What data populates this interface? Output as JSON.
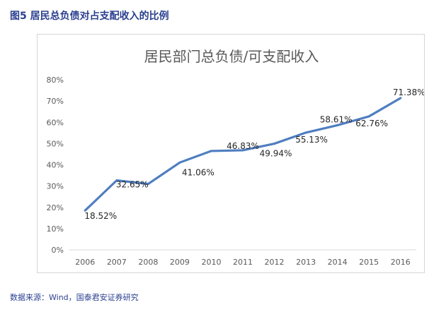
{
  "figure": {
    "title": "图5  居民总负债对占支配收入的比例",
    "source": "数据来源：Wind，国泰君安证券研究"
  },
  "chart_data": {
    "type": "line",
    "title": "居民部门总负债/可支配收入",
    "xlabel": "",
    "ylabel": "",
    "categories": [
      "2006",
      "2007",
      "2008",
      "2009",
      "2010",
      "2011",
      "2012",
      "2013",
      "2014",
      "2015",
      "2016"
    ],
    "series": [
      {
        "values": [
          18.52,
          32.65,
          31.0,
          41.06,
          46.5,
          46.83,
          49.94,
          55.13,
          58.61,
          62.76,
          71.38
        ],
        "data_labels": [
          "18.52%",
          "32.65%",
          "",
          "41.06%",
          "",
          "46.83%",
          "49.94%",
          "55.13%",
          "58.61%",
          "62.76%",
          "71.38%"
        ]
      }
    ],
    "ylim": [
      0,
      80
    ],
    "yticks": [
      "0%",
      "10%",
      "20%",
      "30%",
      "40%",
      "50%",
      "60%",
      "70%",
      "80%"
    ],
    "line_color": "#4f7ec0",
    "grid": false,
    "legend": "none"
  }
}
